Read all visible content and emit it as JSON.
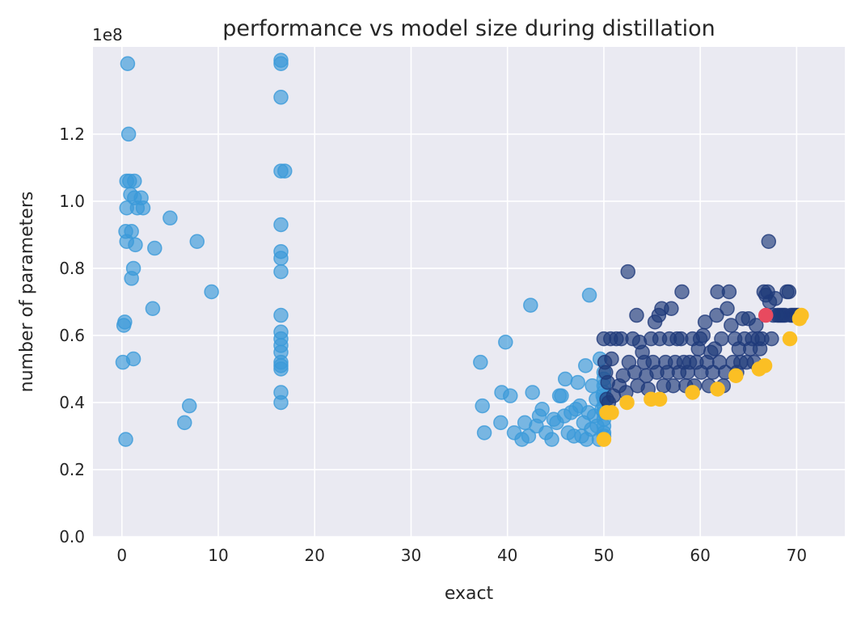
{
  "chart_data": {
    "type": "scatter",
    "title": "performance vs model size during distillation",
    "xlabel": "exact",
    "ylabel": "number of parameters",
    "y_offset_label": "1e8",
    "y_scale": 100000000,
    "xlim": [
      -3,
      75
    ],
    "ylim": [
      0,
      146000000
    ],
    "x_ticks": [
      0,
      10,
      20,
      30,
      40,
      50,
      60,
      70
    ],
    "x_tick_labels": [
      "0",
      "10",
      "20",
      "30",
      "40",
      "50",
      "60",
      "70"
    ],
    "y_ticks": [
      0,
      20000000,
      40000000,
      60000000,
      80000000,
      100000000,
      120000000
    ],
    "y_tick_labels": [
      "0.0",
      "0.2",
      "0.4",
      "0.6",
      "0.8",
      "1.0",
      "1.2"
    ],
    "grid": true,
    "colors": {
      "background": "#eaeaf2",
      "grid": "#ffffff",
      "light_blue": "#3a9ad9",
      "dark_blue": "#1f3a7a",
      "yellow": "#fbbf24",
      "red": "#e84a5f"
    },
    "series": [
      {
        "color": "#3a9ad9",
        "alpha": 0.65,
        "points": [
          [
            0.1,
            52000000
          ],
          [
            0.2,
            63000000
          ],
          [
            0.3,
            64000000
          ],
          [
            0.4,
            29000000
          ],
          [
            0.4,
            91000000
          ],
          [
            0.5,
            98000000
          ],
          [
            0.5,
            88000000
          ],
          [
            0.5,
            106000000
          ],
          [
            0.6,
            141000000
          ],
          [
            0.7,
            120000000
          ],
          [
            0.8,
            106000000
          ],
          [
            0.9,
            102000000
          ],
          [
            1.0,
            91000000
          ],
          [
            1.0,
            77000000
          ],
          [
            1.2,
            53000000
          ],
          [
            1.2,
            80000000
          ],
          [
            1.3,
            106000000
          ],
          [
            1.3,
            101000000
          ],
          [
            1.4,
            87000000
          ],
          [
            1.6,
            98000000
          ],
          [
            2.0,
            101000000
          ],
          [
            2.2,
            98000000
          ],
          [
            3.2,
            68000000
          ],
          [
            3.4,
            86000000
          ],
          [
            5.0,
            95000000
          ],
          [
            6.5,
            34000000
          ],
          [
            7.0,
            39000000
          ],
          [
            7.8,
            88000000
          ],
          [
            9.3,
            73000000
          ],
          [
            16.5,
            40000000
          ],
          [
            16.5,
            43000000
          ],
          [
            16.5,
            50000000
          ],
          [
            16.5,
            51000000
          ],
          [
            16.5,
            52000000
          ],
          [
            16.5,
            55000000
          ],
          [
            16.5,
            57000000
          ],
          [
            16.5,
            59000000
          ],
          [
            16.5,
            61000000
          ],
          [
            16.5,
            66000000
          ],
          [
            16.5,
            79000000
          ],
          [
            16.5,
            83000000
          ],
          [
            16.5,
            85000000
          ],
          [
            16.5,
            93000000
          ],
          [
            16.5,
            109000000
          ],
          [
            16.5,
            131000000
          ],
          [
            16.5,
            141000000
          ],
          [
            16.5,
            142000000
          ],
          [
            16.9,
            109000000
          ],
          [
            37.2,
            52000000
          ],
          [
            37.4,
            39000000
          ],
          [
            37.6,
            31000000
          ],
          [
            39.3,
            34000000
          ],
          [
            39.4,
            43000000
          ],
          [
            39.8,
            58000000
          ],
          [
            40.3,
            42000000
          ],
          [
            40.7,
            31000000
          ],
          [
            41.5,
            29000000
          ],
          [
            41.8,
            34000000
          ],
          [
            42.2,
            30000000
          ],
          [
            42.4,
            69000000
          ],
          [
            42.6,
            43000000
          ],
          [
            43.0,
            33000000
          ],
          [
            43.3,
            36000000
          ],
          [
            43.6,
            38000000
          ],
          [
            44.0,
            31000000
          ],
          [
            44.6,
            29000000
          ],
          [
            44.8,
            35000000
          ],
          [
            45.1,
            34000000
          ],
          [
            45.4,
            42000000
          ],
          [
            45.6,
            42000000
          ],
          [
            45.9,
            36000000
          ],
          [
            46.0,
            47000000
          ],
          [
            46.3,
            31000000
          ],
          [
            46.6,
            37000000
          ],
          [
            46.9,
            30000000
          ],
          [
            47.1,
            38000000
          ],
          [
            47.3,
            46000000
          ],
          [
            47.5,
            39000000
          ],
          [
            47.7,
            30000000
          ],
          [
            47.9,
            34000000
          ],
          [
            48.1,
            51000000
          ],
          [
            48.2,
            29000000
          ],
          [
            48.4,
            37000000
          ],
          [
            48.5,
            72000000
          ],
          [
            48.7,
            32000000
          ],
          [
            48.8,
            45000000
          ],
          [
            49.0,
            36000000
          ],
          [
            49.2,
            41000000
          ],
          [
            49.3,
            33000000
          ],
          [
            49.5,
            29000000
          ],
          [
            49.6,
            53000000
          ],
          [
            49.8,
            38000000
          ],
          [
            49.9,
            42000000
          ],
          [
            50.0,
            30000000
          ],
          [
            50.0,
            31000000
          ],
          [
            50.0,
            33000000
          ],
          [
            50.0,
            35000000
          ],
          [
            50.0,
            37000000
          ],
          [
            50.0,
            39000000
          ],
          [
            50.0,
            41000000
          ],
          [
            50.0,
            43000000
          ],
          [
            50.0,
            45000000
          ],
          [
            50.0,
            47000000
          ],
          [
            50.0,
            49000000
          ]
        ]
      },
      {
        "color": "#1f3a7a",
        "alpha": 0.65,
        "points": [
          [
            50.0,
            59000000
          ],
          [
            50.1,
            52000000
          ],
          [
            50.2,
            49000000
          ],
          [
            50.3,
            41000000
          ],
          [
            50.4,
            46000000
          ],
          [
            50.5,
            40000000
          ],
          [
            50.7,
            59000000
          ],
          [
            50.8,
            53000000
          ],
          [
            51.0,
            42000000
          ],
          [
            51.3,
            59000000
          ],
          [
            51.6,
            45000000
          ],
          [
            51.8,
            59000000
          ],
          [
            52.0,
            48000000
          ],
          [
            52.3,
            43000000
          ],
          [
            52.5,
            79000000
          ],
          [
            52.6,
            52000000
          ],
          [
            53.0,
            59000000
          ],
          [
            53.2,
            49000000
          ],
          [
            53.4,
            66000000
          ],
          [
            53.5,
            45000000
          ],
          [
            53.7,
            58000000
          ],
          [
            54.0,
            55000000
          ],
          [
            54.2,
            52000000
          ],
          [
            54.4,
            48000000
          ],
          [
            54.6,
            44000000
          ],
          [
            54.9,
            59000000
          ],
          [
            55.1,
            52000000
          ],
          [
            55.3,
            64000000
          ],
          [
            55.5,
            49000000
          ],
          [
            55.7,
            66000000
          ],
          [
            55.8,
            59000000
          ],
          [
            56.0,
            68000000
          ],
          [
            56.2,
            45000000
          ],
          [
            56.4,
            52000000
          ],
          [
            56.6,
            49000000
          ],
          [
            56.8,
            59000000
          ],
          [
            57.0,
            68000000
          ],
          [
            57.2,
            45000000
          ],
          [
            57.4,
            52000000
          ],
          [
            57.6,
            59000000
          ],
          [
            57.8,
            49000000
          ],
          [
            58.0,
            59000000
          ],
          [
            58.1,
            73000000
          ],
          [
            58.3,
            52000000
          ],
          [
            58.5,
            45000000
          ],
          [
            58.7,
            49000000
          ],
          [
            58.9,
            52000000
          ],
          [
            59.2,
            59000000
          ],
          [
            59.4,
            45000000
          ],
          [
            59.6,
            52000000
          ],
          [
            59.8,
            56000000
          ],
          [
            60.0,
            59000000
          ],
          [
            60.1,
            49000000
          ],
          [
            60.3,
            60000000
          ],
          [
            60.5,
            64000000
          ],
          [
            60.7,
            52000000
          ],
          [
            60.9,
            45000000
          ],
          [
            61.1,
            55000000
          ],
          [
            61.3,
            49000000
          ],
          [
            61.5,
            56000000
          ],
          [
            61.7,
            66000000
          ],
          [
            61.8,
            73000000
          ],
          [
            62.0,
            52000000
          ],
          [
            62.2,
            59000000
          ],
          [
            62.4,
            45000000
          ],
          [
            62.6,
            49000000
          ],
          [
            62.8,
            68000000
          ],
          [
            63.0,
            73000000
          ],
          [
            63.2,
            63000000
          ],
          [
            63.4,
            52000000
          ],
          [
            63.6,
            59000000
          ],
          [
            63.8,
            49000000
          ],
          [
            64.0,
            56000000
          ],
          [
            64.2,
            52000000
          ],
          [
            64.4,
            65000000
          ],
          [
            64.6,
            59000000
          ],
          [
            64.8,
            52000000
          ],
          [
            65.0,
            65000000
          ],
          [
            65.2,
            56000000
          ],
          [
            65.4,
            59000000
          ],
          [
            65.6,
            52000000
          ],
          [
            65.8,
            63000000
          ],
          [
            66.0,
            59000000
          ],
          [
            66.2,
            56000000
          ],
          [
            66.4,
            59000000
          ],
          [
            66.6,
            73000000
          ],
          [
            66.8,
            72000000
          ],
          [
            67.0,
            73000000
          ],
          [
            67.1,
            88000000
          ],
          [
            67.2,
            70000000
          ],
          [
            67.4,
            59000000
          ],
          [
            67.6,
            66000000
          ],
          [
            67.8,
            71000000
          ],
          [
            68.0,
            66000000
          ],
          [
            68.2,
            66000000
          ],
          [
            68.4,
            66000000
          ],
          [
            68.6,
            66000000
          ],
          [
            68.8,
            66000000
          ],
          [
            69.0,
            73000000
          ],
          [
            69.2,
            73000000
          ],
          [
            69.4,
            66000000
          ],
          [
            69.6,
            66000000
          ],
          [
            69.8,
            66000000
          ],
          [
            70.0,
            66000000
          ],
          [
            70.2,
            66000000
          ]
        ]
      },
      {
        "color": "#fbbf24",
        "alpha": 1.0,
        "points": [
          [
            50.0,
            29000000
          ],
          [
            50.3,
            37000000
          ],
          [
            50.8,
            37000000
          ],
          [
            52.4,
            40000000
          ],
          [
            54.9,
            41000000
          ],
          [
            55.8,
            41000000
          ],
          [
            59.2,
            43000000
          ],
          [
            61.8,
            44000000
          ],
          [
            63.7,
            48000000
          ],
          [
            66.1,
            50000000
          ],
          [
            66.7,
            51000000
          ],
          [
            69.3,
            59000000
          ],
          [
            70.3,
            65000000
          ],
          [
            70.5,
            66000000
          ]
        ]
      },
      {
        "color": "#e84a5f",
        "alpha": 1.0,
        "points": [
          [
            66.8,
            66000000
          ]
        ]
      }
    ]
  }
}
